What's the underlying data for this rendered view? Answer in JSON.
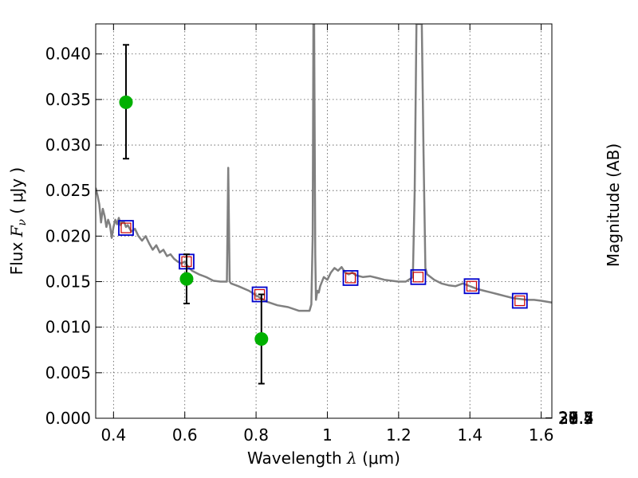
{
  "chart_data": {
    "type": "scatter",
    "xlabel_text": "Wavelength",
    "xlabel_symbol": "λ",
    "xlabel_unit": "μm",
    "ylabel_text": "Flux",
    "ylabel_symbol": "F",
    "ylabel_symbol_sub": "ν",
    "ylabel_unit": "μJy",
    "y2label": "Magnitude (AB)",
    "xlim": [
      0.35,
      1.63
    ],
    "ylim": [
      0.0,
      0.0433
    ],
    "grid": true,
    "x_ticks": [
      {
        "value": 0.4,
        "label": "0.4"
      },
      {
        "value": 0.6,
        "label": "0.6"
      },
      {
        "value": 0.8,
        "label": "0.8"
      },
      {
        "value": 1.0,
        "label": "1"
      },
      {
        "value": 1.2,
        "label": "1.2"
      },
      {
        "value": 1.4,
        "label": "1.4"
      },
      {
        "value": 1.6,
        "label": "1.6"
      }
    ],
    "y_ticks": [
      {
        "value": 0.0,
        "label": "0.000"
      },
      {
        "value": 0.005,
        "label": "0.005"
      },
      {
        "value": 0.01,
        "label": "0.010"
      },
      {
        "value": 0.015,
        "label": "0.015"
      },
      {
        "value": 0.02,
        "label": "0.020"
      },
      {
        "value": 0.025,
        "label": "0.025"
      },
      {
        "value": 0.03,
        "label": "0.030"
      },
      {
        "value": 0.035,
        "label": "0.035"
      },
      {
        "value": 0.04,
        "label": "0.040"
      }
    ],
    "y2_ticks": [
      {
        "value": 27.4,
        "label": "27.4"
      },
      {
        "value": 27.5,
        "label": "27.5"
      },
      {
        "value": 27.7,
        "label": "27.7"
      },
      {
        "value": 28.0,
        "label": "28"
      },
      {
        "value": 28.2,
        "label": "28.2"
      },
      {
        "value": 28.5,
        "label": "28.5"
      },
      {
        "value": 29.0,
        "label": "29"
      },
      {
        "value": 29.5,
        "label": "29.5"
      },
      {
        "value": 30.0,
        "label": "30"
      },
      {
        "value": 31.0,
        "label": "31"
      }
    ],
    "colors": {
      "model": "#808080",
      "observed": "#00b000",
      "model_box": "#0000cc",
      "model_box_inner": "#cc0000",
      "errorbar": "#000000"
    },
    "series": [
      {
        "kind": "model_spectrum",
        "x": [
          0.35,
          0.355,
          0.36,
          0.365,
          0.37,
          0.375,
          0.38,
          0.385,
          0.39,
          0.395,
          0.4,
          0.405,
          0.41,
          0.415,
          0.42,
          0.425,
          0.43,
          0.435,
          0.44,
          0.45,
          0.46,
          0.47,
          0.48,
          0.49,
          0.5,
          0.51,
          0.52,
          0.53,
          0.54,
          0.55,
          0.56,
          0.57,
          0.58,
          0.59,
          0.6,
          0.61,
          0.62,
          0.64,
          0.66,
          0.68,
          0.7,
          0.71,
          0.718,
          0.722,
          0.726,
          0.73,
          0.75,
          0.78,
          0.8,
          0.83,
          0.86,
          0.89,
          0.92,
          0.95,
          0.955,
          0.959,
          0.961,
          0.963,
          0.966,
          0.968,
          0.972,
          0.976,
          0.98,
          0.99,
          1.0,
          1.01,
          1.02,
          1.03,
          1.04,
          1.05,
          1.06,
          1.07,
          1.08,
          1.1,
          1.12,
          1.14,
          1.16,
          1.18,
          1.2,
          1.22,
          1.24,
          1.245,
          1.25,
          1.255,
          1.265,
          1.27,
          1.275,
          1.28,
          1.3,
          1.32,
          1.34,
          1.36,
          1.38,
          1.4,
          1.42,
          1.44,
          1.46,
          1.48,
          1.5,
          1.52,
          1.54,
          1.56,
          1.58,
          1.6,
          1.63
        ],
        "y": [
          0.0253,
          0.0245,
          0.0235,
          0.0215,
          0.023,
          0.0222,
          0.021,
          0.0218,
          0.0212,
          0.0198,
          0.021,
          0.0218,
          0.0213,
          0.022,
          0.0212,
          0.0216,
          0.0215,
          0.021,
          0.0212,
          0.0205,
          0.0208,
          0.02,
          0.0195,
          0.02,
          0.0192,
          0.0185,
          0.019,
          0.0182,
          0.0185,
          0.0178,
          0.018,
          0.0175,
          0.0172,
          0.017,
          0.0172,
          0.0166,
          0.0162,
          0.0158,
          0.0155,
          0.0151,
          0.015,
          0.015,
          0.015,
          0.0275,
          0.015,
          0.0148,
          0.0145,
          0.014,
          0.0135,
          0.0128,
          0.0124,
          0.0122,
          0.0118,
          0.0118,
          0.0125,
          0.02,
          0.0433,
          0.0433,
          0.018,
          0.013,
          0.014,
          0.0138,
          0.0145,
          0.0155,
          0.0152,
          0.016,
          0.0165,
          0.0162,
          0.0166,
          0.016,
          0.0158,
          0.016,
          0.0157,
          0.0155,
          0.0156,
          0.0154,
          0.0152,
          0.0151,
          0.015,
          0.015,
          0.0155,
          0.025,
          0.0433,
          0.0433,
          0.0433,
          0.029,
          0.0165,
          0.0158,
          0.0152,
          0.0148,
          0.0146,
          0.0145,
          0.0148,
          0.0145,
          0.0142,
          0.014,
          0.0138,
          0.0136,
          0.0134,
          0.0132,
          0.0131,
          0.013,
          0.013,
          0.0129,
          0.0127
        ]
      },
      {
        "kind": "model_photometry",
        "x": [
          0.435,
          0.605,
          0.81,
          1.065,
          1.255,
          1.405,
          1.54
        ],
        "y": [
          0.0209,
          0.0172,
          0.0136,
          0.0154,
          0.0155,
          0.0145,
          0.0129
        ]
      },
      {
        "kind": "observed_photometry",
        "x": [
          0.435,
          0.605,
          0.815
        ],
        "y": [
          0.0347,
          0.0153,
          0.0087
        ],
        "yerr": [
          [
            0.0062,
            0.0063
          ],
          [
            0.0027,
            0.0027
          ],
          [
            0.0049,
            0.0049
          ]
        ]
      }
    ]
  }
}
